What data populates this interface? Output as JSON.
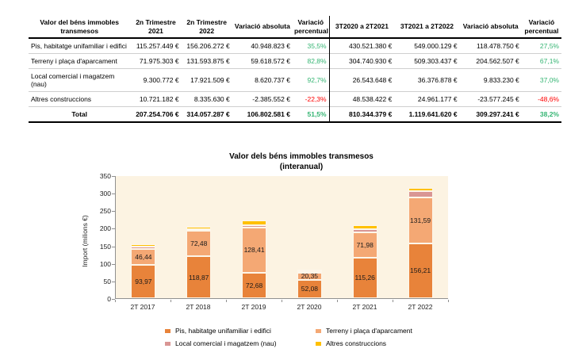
{
  "table": {
    "headers": [
      "Valor del béns immobles transmesos",
      "2n Trimestre 2021",
      "2n Trimestre 2022",
      "Variació absoluta",
      "Variació percentual",
      "3T2020 a 2T2021",
      "3T2021 a 2T2022",
      "Variació absoluta",
      "Variació percentual"
    ],
    "rows": [
      {
        "label": "Pis, habitatge unifamiliar i edifici",
        "cells": [
          "115.257.449 €",
          "156.206.272 €",
          "40.948.823 €",
          "35,5%",
          "430.521.380 €",
          "549.000.129 €",
          "118.478.750 €",
          "27,5%"
        ]
      },
      {
        "label": "Terreny i plaça d'aparcament",
        "cells": [
          "71.975.303 €",
          "131.593.875 €",
          "59.618.572 €",
          "82,8%",
          "304.740.930 €",
          "509.303.437 €",
          "204.562.507 €",
          "67,1%"
        ]
      },
      {
        "label": "Local comercial i magatzem (nau)",
        "cells": [
          "9.300.772 €",
          "17.921.509 €",
          "8.620.737 €",
          "92,7%",
          "26.543.648 €",
          "36.376.878 €",
          "9.833.230 €",
          "37,0%"
        ]
      },
      {
        "label": "Altres construccions",
        "cells": [
          "10.721.182 €",
          "8.335.630 €",
          "-2.385.552 €",
          "-22,3%",
          "48.538.422 €",
          "24.961.177 €",
          "-23.577.245 €",
          "-48,6%"
        ]
      }
    ],
    "total": {
      "label": "Total",
      "cells": [
        "207.254.706 €",
        "314.057.287 €",
        "106.802.581 €",
        "51,5%",
        "810.344.379 €",
        "1.119.641.620 €",
        "309.297.241 €",
        "38,2%"
      ]
    },
    "positive_color": "#35B573",
    "negative_color": "#FF0000"
  },
  "chart_data": {
    "type": "bar",
    "stacked": true,
    "title": "Valor dels béns immobles transmesos",
    "subtitle": "(interanual)",
    "ylabel": "Import (milions €)",
    "ylim": [
      0,
      350
    ],
    "yticks": [
      0,
      50,
      100,
      150,
      200,
      250,
      300,
      350
    ],
    "categories": [
      "2T 2017",
      "2T 2018",
      "2T 2019",
      "2T 2020",
      "2T 2021",
      "2T 2022"
    ],
    "series": [
      {
        "name": "Pis, habitatge unifamiliar i edifici",
        "color": "#E8833A",
        "labeled": true,
        "values": [
          93.97,
          118.87,
          72.68,
          52.08,
          115.26,
          156.21
        ]
      },
      {
        "name": "Terreny i plaça d'aparcament",
        "color": "#F4A874",
        "labeled": true,
        "values": [
          46.44,
          72.48,
          128.41,
          20.35,
          71.98,
          131.59
        ]
      },
      {
        "name": "Local comercial i magatzem (nau)",
        "color": "#D99694",
        "labeled": false,
        "values": [
          5.5,
          4.5,
          6.5,
          0.9,
          9.3,
          17.92
        ]
      },
      {
        "name": "Altres construccions",
        "color": "#FFC000",
        "labeled": false,
        "values": [
          8.6,
          7.5,
          14.5,
          1.3,
          10.72,
          8.34
        ]
      }
    ],
    "plot_bg": "#FCF3E2",
    "grid": false,
    "legend_position": "bottom"
  }
}
